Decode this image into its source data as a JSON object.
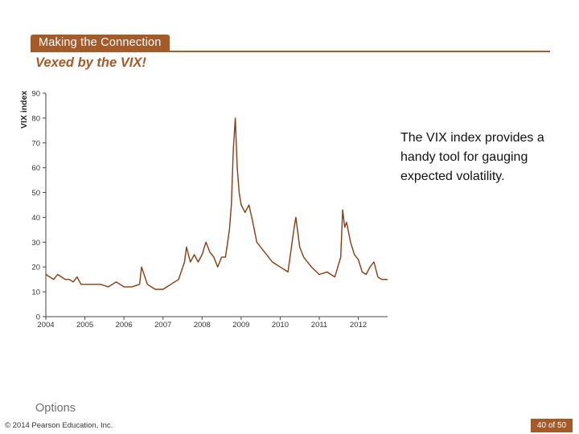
{
  "banner": {
    "label": "Making the Connection",
    "color": "#a55a2a"
  },
  "slide_title": "Vexed by the VIX!",
  "caption": "The VIX index provides a handy tool for gauging expected volatility.",
  "footer": {
    "topic": "Options",
    "copyright": "© 2014 Pearson Education, Inc.",
    "page": "40 of 50"
  },
  "chart_data": {
    "type": "line",
    "title": "",
    "xlabel": "",
    "ylabel": "VIX index",
    "ylim": [
      0,
      90
    ],
    "xlim": [
      2004,
      2012.75
    ],
    "yticks": [
      "0",
      "10",
      "20",
      "30",
      "40",
      "50",
      "60",
      "70",
      "80",
      "90"
    ],
    "xticks": [
      "2004",
      "2005",
      "2006",
      "2007",
      "2008",
      "2009",
      "2010",
      "2011",
      "2012"
    ],
    "grid": false,
    "legend": "none",
    "line_color": "#8b3a10",
    "series": [
      {
        "values_x": [
          2004.0,
          2004.1,
          2004.2,
          2004.3,
          2004.4,
          2004.5,
          2004.6,
          2004.7,
          2004.8,
          2004.9,
          2005.0,
          2005.2,
          2005.4,
          2005.6,
          2005.8,
          2006.0,
          2006.2,
          2006.4,
          2006.45,
          2006.6,
          2006.8,
          2007.0,
          2007.1,
          2007.2,
          2007.4,
          2007.55,
          2007.6,
          2007.7,
          2007.8,
          2007.9,
          2008.0,
          2008.1,
          2008.2,
          2008.3,
          2008.4,
          2008.5,
          2008.6,
          2008.7,
          2008.75,
          2008.8,
          2008.85,
          2008.9,
          2008.95,
          2009.0,
          2009.1,
          2009.2,
          2009.3,
          2009.4,
          2009.5,
          2009.6,
          2009.8,
          2010.0,
          2010.2,
          2010.35,
          2010.4,
          2010.5,
          2010.6,
          2010.8,
          2011.0,
          2011.2,
          2011.4,
          2011.55,
          2011.6,
          2011.65,
          2011.7,
          2011.8,
          2011.9,
          2012.0,
          2012.1,
          2012.2,
          2012.3,
          2012.4,
          2012.5,
          2012.6,
          2012.75
        ],
        "values": [
          17,
          16,
          15,
          17,
          16,
          15,
          15,
          14,
          16,
          13,
          13,
          13,
          13,
          12,
          14,
          12,
          12,
          13,
          20,
          13,
          11,
          11,
          12,
          13,
          15,
          22,
          28,
          22,
          25,
          22,
          25,
          30,
          26,
          24,
          20,
          24,
          24,
          35,
          45,
          67,
          80,
          60,
          50,
          45,
          42,
          45,
          38,
          30,
          28,
          26,
          22,
          20,
          18,
          35,
          40,
          28,
          24,
          20,
          17,
          18,
          16,
          24,
          43,
          36,
          38,
          30,
          25,
          23,
          18,
          17,
          20,
          22,
          16,
          15,
          15
        ]
      }
    ]
  }
}
